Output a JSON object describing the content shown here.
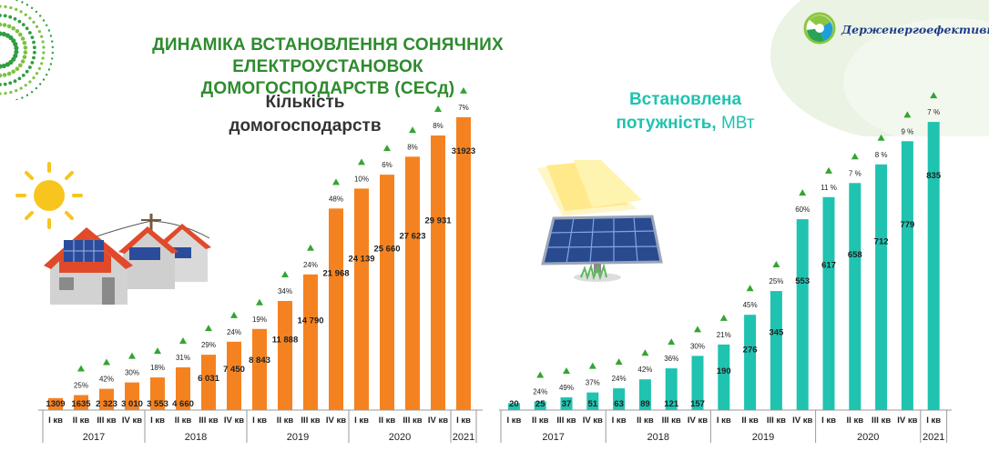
{
  "title": {
    "line1": "ДИНАМІКА ВСТАНОВЛЕННЯ СОНЯЧНИХ ЕЛЕКТРОУСТАНОВОК",
    "line2": "ДОМОГОСПОДАРСТВ (СЕСд)"
  },
  "logo": {
    "text": "Держенергоефективност"
  },
  "colors": {
    "title": "#2e8b2e",
    "orange": "#f58220",
    "teal": "#1fc3b0",
    "arrow": "#33a532"
  },
  "chart_data": [
    {
      "type": "bar",
      "title_line1": "Кількість",
      "title_line2": "домогосподарств",
      "categories": [
        "I кв",
        "II кв",
        "III кв",
        "IV кв",
        "I кв",
        "II кв",
        "III кв",
        "IV кв",
        "I кв",
        "II кв",
        "III кв",
        "IV кв",
        "I кв",
        "II кв",
        "III кв",
        "IV кв",
        "I кв"
      ],
      "years": [
        {
          "label": "2017",
          "from": 0,
          "to": 3
        },
        {
          "label": "2018",
          "from": 4,
          "to": 7
        },
        {
          "label": "2019",
          "from": 8,
          "to": 11
        },
        {
          "label": "2020",
          "from": 12,
          "to": 15
        },
        {
          "label": "2021",
          "from": 16,
          "to": 16
        }
      ],
      "values": [
        1309,
        1635,
        2323,
        3010,
        3553,
        4660,
        6031,
        7450,
        8843,
        11888,
        14790,
        21968,
        24139,
        25660,
        27623,
        29931,
        31923
      ],
      "value_labels": [
        "1309",
        "1635",
        "2 323",
        "3 010",
        "3 553",
        "4 660",
        "6 031",
        "7 450",
        "8 843",
        "11 888",
        "14 790",
        "21 968",
        "24 139",
        "25 660",
        "27 623",
        "29 931",
        "31923"
      ],
      "growth_labels": [
        "",
        "25%",
        "42%",
        "30%",
        "18%",
        "31%",
        "29%",
        "24%",
        "19%",
        "34%",
        "24%",
        "48%",
        "10%",
        "6%",
        "8%",
        "8%",
        "7%"
      ],
      "ylim": [
        0,
        33000
      ],
      "color": "#f58220"
    },
    {
      "type": "bar",
      "title_line1": "Встановлена",
      "title_line2": "потужність,",
      "unit": "МВт",
      "categories": [
        "I кв",
        "II кв",
        "III кв",
        "IV кв",
        "I кв",
        "II кв",
        "III кв",
        "IV кв",
        "I кв",
        "II кв",
        "III кв",
        "IV кв",
        "I кв",
        "II кв",
        "III кв",
        "IV кв",
        "I кв"
      ],
      "years": [
        {
          "label": "2017",
          "from": 0,
          "to": 3
        },
        {
          "label": "2018",
          "from": 4,
          "to": 7
        },
        {
          "label": "2019",
          "from": 8,
          "to": 11
        },
        {
          "label": "2020",
          "from": 12,
          "to": 15
        },
        {
          "label": "2021",
          "from": 16,
          "to": 16
        }
      ],
      "values": [
        20,
        25,
        37,
        51,
        63,
        89,
        121,
        157,
        190,
        276,
        345,
        553,
        617,
        658,
        712,
        779,
        835
      ],
      "value_labels": [
        "20",
        "25",
        "37",
        "51",
        "63",
        "89",
        "121",
        "157",
        "190",
        "276",
        "345",
        "553",
        "617",
        "658",
        "712",
        "779",
        "835"
      ],
      "growth_labels": [
        "",
        "24%",
        "49%",
        "37%",
        "24%",
        "42%",
        "36%",
        "30%",
        "21%",
        "45%",
        "25%",
        "60%",
        "11 %",
        "7 %",
        "8 %",
        "9 %",
        "7 %"
      ],
      "ylim": [
        0,
        880
      ],
      "color": "#1fc3b0"
    }
  ]
}
